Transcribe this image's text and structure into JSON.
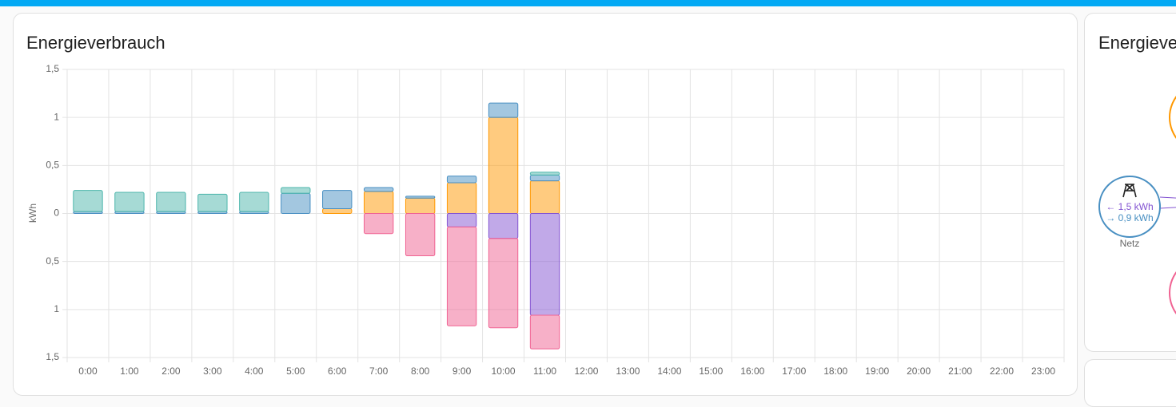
{
  "chart_data": {
    "type": "bar",
    "stacked": true,
    "title": "Energieverbrauch",
    "y_label": "kWh",
    "categories": [
      "0:00",
      "1:00",
      "2:00",
      "3:00",
      "4:00",
      "5:00",
      "6:00",
      "7:00",
      "8:00",
      "9:00",
      "10:00",
      "11:00",
      "12:00",
      "13:00",
      "14:00",
      "15:00",
      "16:00",
      "17:00",
      "18:00",
      "19:00",
      "20:00",
      "21:00",
      "22:00",
      "23:00"
    ],
    "series": [
      {
        "color": "#ff9800",
        "values": [
          0,
          0,
          0,
          0,
          0,
          0,
          0.05,
          0.23,
          0.16,
          0.32,
          1.0,
          0.34,
          null,
          null,
          null,
          null,
          null,
          null,
          null,
          null,
          null,
          null,
          null,
          null
        ]
      },
      {
        "color": "#488fc2",
        "values": [
          0.02,
          0.02,
          0.02,
          0.02,
          0.02,
          0.21,
          0.19,
          0.04,
          0.02,
          0.07,
          0.15,
          0.06,
          null,
          null,
          null,
          null,
          null,
          null,
          null,
          null,
          null,
          null,
          null,
          null
        ]
      },
      {
        "color": "#4db6ac",
        "values": [
          0.22,
          0.2,
          0.2,
          0.18,
          0.2,
          0.06,
          0,
          0,
          0,
          0,
          0,
          0.03,
          null,
          null,
          null,
          null,
          null,
          null,
          null,
          null,
          null,
          null,
          null,
          null
        ]
      },
      {
        "color": "#8353d1",
        "values": [
          0,
          0,
          0,
          0,
          0,
          0,
          0,
          0,
          0,
          -0.14,
          -0.26,
          -1.06,
          null,
          null,
          null,
          null,
          null,
          null,
          null,
          null,
          null,
          null,
          null,
          null
        ]
      },
      {
        "color": "#f06292",
        "values": [
          0,
          0,
          0,
          0,
          0,
          0,
          0,
          -0.21,
          -0.44,
          -1.03,
          -0.93,
          -0.35,
          null,
          null,
          null,
          null,
          null,
          null,
          null,
          null,
          null,
          null,
          null,
          null
        ]
      }
    ],
    "ylim": [
      -1.5,
      1.5
    ],
    "yticks": [
      {
        "value": -1.5,
        "label": "1,5"
      },
      {
        "value": -1,
        "label": "1"
      },
      {
        "value": -0.5,
        "label": "0,5"
      },
      0,
      {
        "value": 0.5,
        "label": "0,5"
      },
      1,
      {
        "value": 1.5,
        "label": "1,5"
      }
    ],
    "grid": true
  },
  "side_card": {
    "title": "Energieverteilung",
    "node_label": "Netz",
    "import": "← 1,5 kWh",
    "export": "→ 0,9 kWh"
  }
}
